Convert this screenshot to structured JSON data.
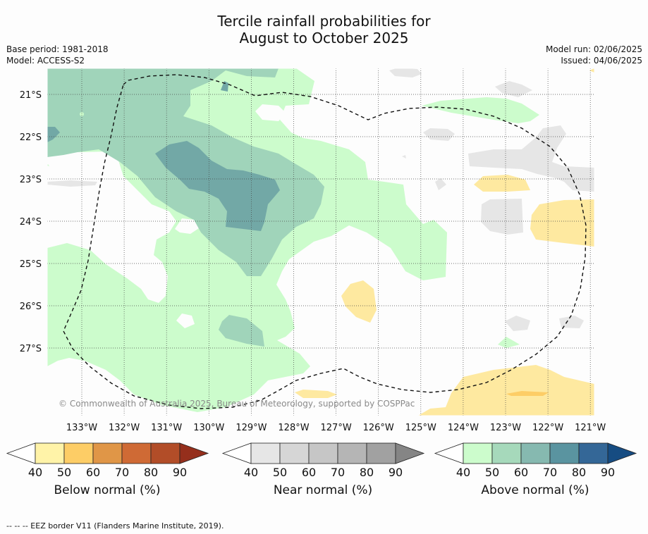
{
  "title_line1": "Tercile rainfall probabilities for",
  "title_line2": "August to October 2025",
  "meta_left": {
    "base_period": "Base period: 1981-2018",
    "model": "Model: ACCESS-S2"
  },
  "meta_right": {
    "model_run": "Model run: 02/06/2025",
    "issued": "Issued: 04/06/2025"
  },
  "lat_labels": [
    "21°S",
    "22°S",
    "23°S",
    "24°S",
    "25°S",
    "26°S",
    "27°S"
  ],
  "lon_labels": [
    "133°W",
    "132°W",
    "131°W",
    "130°W",
    "129°W",
    "128°W",
    "127°W",
    "126°W",
    "125°W",
    "124°W",
    "123°W",
    "122°W",
    "121°W"
  ],
  "copyright": "© Commonwealth of Australia 2025, Bureau of Meteorology, supported by COSPPac",
  "colorbars": [
    {
      "label": "Below normal (%)",
      "ticks": [
        "40",
        "50",
        "60",
        "70",
        "80",
        "90"
      ],
      "colors": [
        "#fff3a8",
        "#fdcd66",
        "#e09647",
        "#cf6a35",
        "#b24d28",
        "#952f1c"
      ]
    },
    {
      "label": "Near normal (%)",
      "ticks": [
        "40",
        "50",
        "60",
        "70",
        "80",
        "90"
      ],
      "colors": [
        "#e6e6e6",
        "#d6d6d6",
        "#c6c6c6",
        "#b5b5b5",
        "#a1a1a1",
        "#858585"
      ]
    },
    {
      "label": "Above normal (%)",
      "ticks": [
        "40",
        "50",
        "60",
        "70",
        "80",
        "90"
      ],
      "colors": [
        "#ccfccc",
        "#a6d9bb",
        "#86b9b0",
        "#5a94a0",
        "#346797",
        "#164c82"
      ]
    }
  ],
  "footnote": "--  --  -- EEZ border V11 (Flanders Marine Institute, 2019)."
}
